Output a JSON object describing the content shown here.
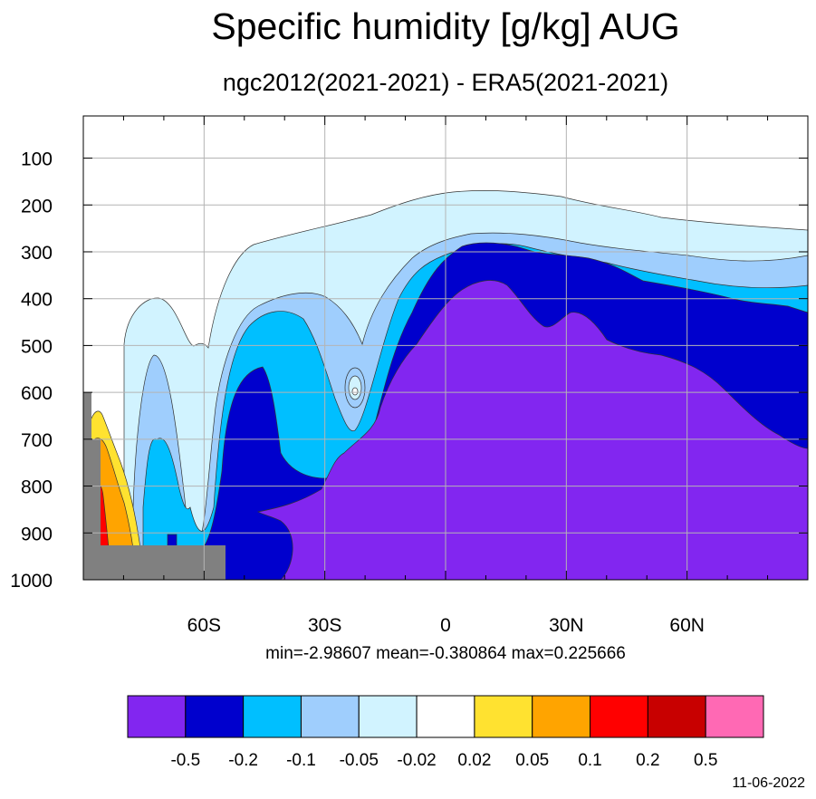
{
  "chart_data": {
    "type": "heatmap",
    "title": "Specific humidity [g/kg] AUG",
    "subtitle": "ngc2012(2021-2021) - ERA5(2021-2021)",
    "xlabel": "",
    "ylabel": "",
    "x_ticks": [
      {
        "value": -60,
        "label": "60S"
      },
      {
        "value": -30,
        "label": "30S"
      },
      {
        "value": 0,
        "label": "0"
      },
      {
        "value": 30,
        "label": "30N"
      },
      {
        "value": 60,
        "label": "60N"
      }
    ],
    "y_ticks": [
      100,
      200,
      300,
      400,
      500,
      600,
      700,
      800,
      900,
      1000
    ],
    "xlim": [
      -90,
      90
    ],
    "ylim": [
      1000,
      10
    ],
    "grid": true,
    "stats": {
      "min": -2.98607,
      "mean": -0.380864,
      "max": 0.225666
    },
    "stats_text": "min=-2.98607   mean=-0.380864   max=0.225666",
    "colorbar": {
      "colors": [
        "#8226f0",
        "#0000cd",
        "#00bfff",
        "#9fcefd",
        "#d1f3ff",
        "#ffffff",
        "#ffe230",
        "#ffa400",
        "#ff0000",
        "#c80000",
        "#ff69b4"
      ],
      "levels": [
        "-0.5",
        "-0.2",
        "-0.1",
        "-0.05",
        "-0.02",
        "0.02",
        "0.05",
        "0.1",
        "0.2",
        "0.5"
      ]
    }
  },
  "datestamp": "11-06-2022"
}
